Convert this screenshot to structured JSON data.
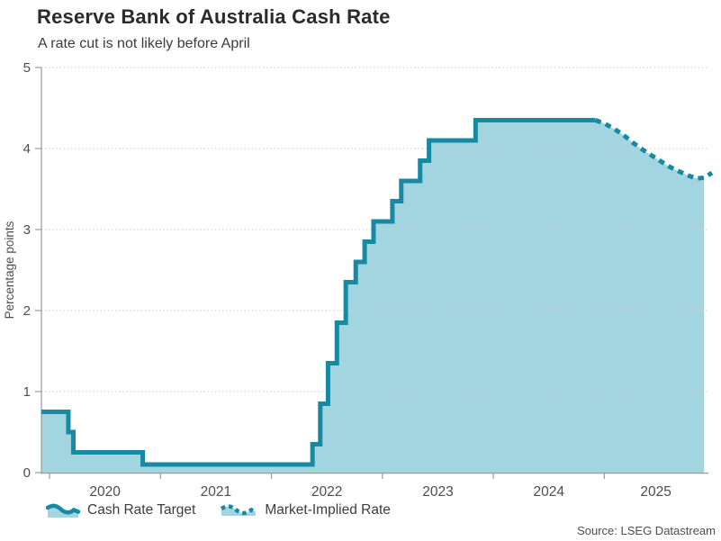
{
  "source_note": "Source: LSEG Datastream",
  "colors": {
    "line": "#1789a3",
    "fill": "#a3d5e0",
    "grid": "#cccccc",
    "axis": "#9a9a9a",
    "tick_text": "#4d4d4d",
    "title_text": "#2b2b2b"
  },
  "chart_data": {
    "type": "area",
    "subtype": "step-area with dotted projection line",
    "title": "Reserve Bank of Australia Cash Rate",
    "subtitle": "A rate cut is not likely before April",
    "xlabel": "",
    "ylabel": "Percentage points",
    "xlim": [
      2019.927,
      2025.93
    ],
    "ylim": [
      0,
      5
    ],
    "x_ticks": [
      2020,
      2021,
      2022,
      2023,
      2024,
      2025
    ],
    "y_ticks": [
      0,
      1,
      2,
      3,
      4,
      5
    ],
    "grid": "horizontal dotted gridlines at each integer",
    "legend_position": "bottom-left",
    "series": [
      {
        "name": "Cash Rate Target",
        "style": "solid step line with light filled area below",
        "points": [
          [
            2019.927,
            0.75
          ],
          [
            2020.17,
            0.5
          ],
          [
            2020.215,
            0.25
          ],
          [
            2020.84,
            0.1
          ],
          [
            2022.37,
            0.35
          ],
          [
            2022.44,
            0.85
          ],
          [
            2022.51,
            1.35
          ],
          [
            2022.59,
            1.85
          ],
          [
            2022.67,
            2.35
          ],
          [
            2022.76,
            2.6
          ],
          [
            2022.84,
            2.85
          ],
          [
            2022.92,
            3.1
          ],
          [
            2023.09,
            3.35
          ],
          [
            2023.17,
            3.6
          ],
          [
            2023.34,
            3.85
          ],
          [
            2023.42,
            4.1
          ],
          [
            2023.84,
            4.35
          ],
          [
            2024.92,
            4.35
          ]
        ]
      },
      {
        "name": "Market-Implied Rate",
        "style": "dotted line projection with light filled area below",
        "points": [
          [
            2024.92,
            4.35
          ],
          [
            2025.0,
            4.31
          ],
          [
            2025.08,
            4.25
          ],
          [
            2025.17,
            4.17
          ],
          [
            2025.25,
            4.08
          ],
          [
            2025.33,
            4.0
          ],
          [
            2025.42,
            3.92
          ],
          [
            2025.5,
            3.85
          ],
          [
            2025.58,
            3.78
          ],
          [
            2025.67,
            3.72
          ],
          [
            2025.75,
            3.67
          ],
          [
            2025.83,
            3.63
          ],
          [
            2025.9,
            3.64
          ],
          [
            2025.97,
            3.7
          ]
        ]
      }
    ]
  }
}
